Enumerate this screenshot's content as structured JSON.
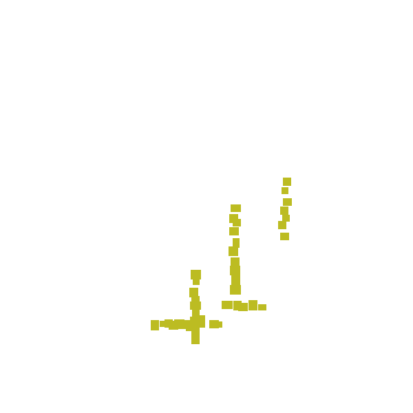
{
  "colors": {
    "background": "#ffffff",
    "mark": "#bcbc22"
  },
  "strokes": [
    {
      "name": "stroke-right-vertical"
    },
    {
      "name": "stroke-middle-vertical"
    },
    {
      "name": "stroke-middle-horizontal"
    },
    {
      "name": "stroke-left-vertical"
    },
    {
      "name": "stroke-left-horizontal"
    }
  ]
}
